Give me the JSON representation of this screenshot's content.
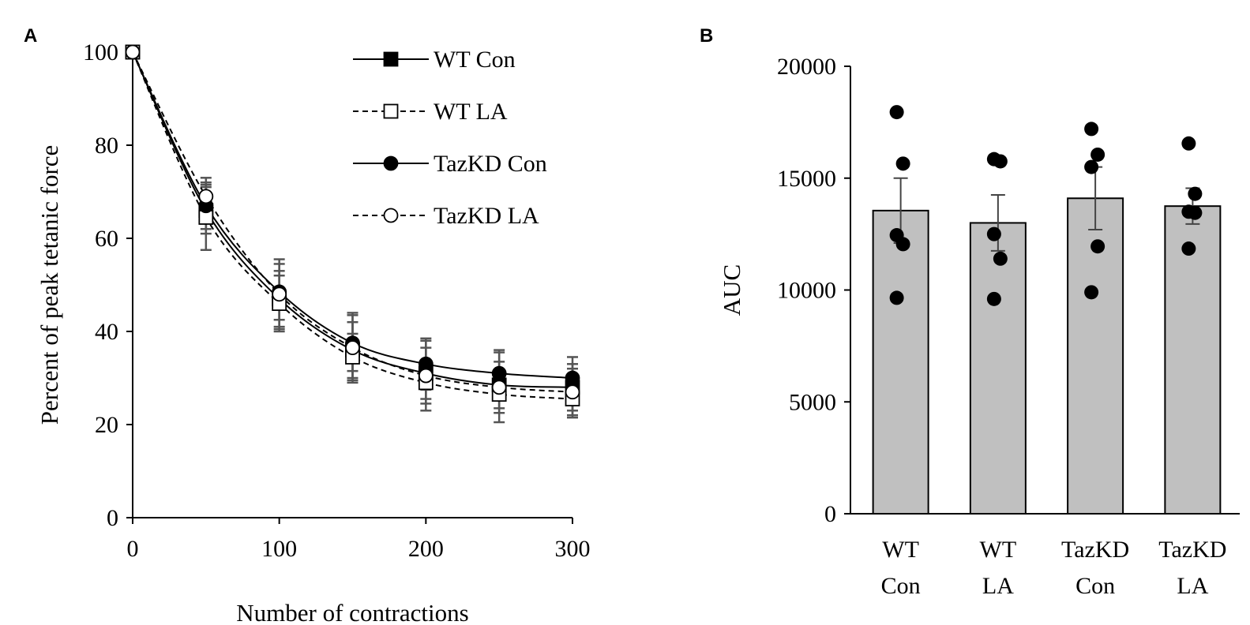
{
  "panel_labels": {
    "a": "A",
    "b": "B"
  },
  "chart_data": [
    {
      "type": "line",
      "title": "",
      "xlabel": "Number of contractions",
      "ylabel": "Percent of peak tetanic force",
      "xlim": [
        0,
        300
      ],
      "ylim": [
        0,
        100
      ],
      "x_ticks": [
        "0",
        "100",
        "200",
        "300"
      ],
      "y_ticks": [
        "0",
        "20",
        "40",
        "60",
        "80",
        "100"
      ],
      "x": [
        0,
        50,
        100,
        150,
        200,
        250,
        300
      ],
      "series": [
        {
          "name": "WT Con",
          "marker": "square-filled",
          "dash": "solid",
          "values": [
            100,
            66,
            47,
            36,
            31,
            28.5,
            28
          ],
          "err": [
            0,
            5,
            6,
            6,
            5.5,
            5,
            5
          ]
        },
        {
          "name": "WT LA",
          "marker": "square-open",
          "dash": "dashed",
          "values": [
            100,
            64.5,
            46,
            34.5,
            29,
            26.5,
            25.5
          ],
          "err": [
            0,
            7,
            6,
            5,
            4.5,
            4,
            4
          ]
        },
        {
          "name": "TazKD Con",
          "marker": "circle-filled",
          "dash": "solid",
          "values": [
            100,
            67,
            48.5,
            37.5,
            33,
            31,
            30
          ],
          "err": [
            0,
            5,
            6,
            6,
            5.5,
            5,
            4.5
          ]
        },
        {
          "name": "TazKD LA",
          "marker": "circle-open",
          "dash": "dashed",
          "values": [
            100,
            69,
            48,
            36.5,
            30.5,
            28,
            27
          ],
          "err": [
            0,
            4,
            7.5,
            7.5,
            7.5,
            7.5,
            5
          ]
        }
      ],
      "legend_position": "top-right"
    },
    {
      "type": "bar",
      "title": "",
      "xlabel": "",
      "ylabel": "AUC",
      "ylim": [
        0,
        20000
      ],
      "y_ticks": [
        "0",
        "5000",
        "10000",
        "15000",
        "20000"
      ],
      "categories": [
        {
          "line1": "WT",
          "line2": "Con"
        },
        {
          "line1": "WT",
          "line2": "LA"
        },
        {
          "line1": "TazKD",
          "line2": "Con"
        },
        {
          "line1": "TazKD",
          "line2": "LA"
        }
      ],
      "values": [
        13550,
        13000,
        14100,
        13750
      ],
      "err": [
        1450,
        1250,
        1400,
        800
      ],
      "points": [
        [
          17950,
          15650,
          12450,
          12050,
          9650
        ],
        [
          15850,
          15750,
          12500,
          11400,
          9600
        ],
        [
          17200,
          16050,
          15500,
          11950,
          9900
        ],
        [
          16550,
          14300,
          13500,
          13450,
          11850
        ]
      ],
      "bar_color": "#c0c0c0",
      "error_color": "#444444"
    }
  ]
}
